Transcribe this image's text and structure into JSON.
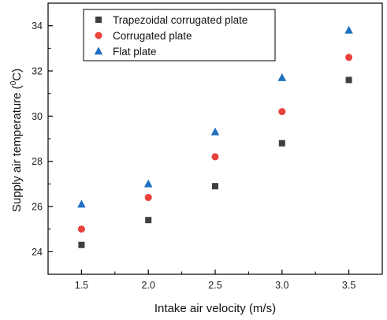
{
  "chart_data": {
    "type": "scatter",
    "xlabel": "Intake air velocity (m/s)",
    "ylabel": "Supply air temperature (",
    "ylabel_super": "0",
    "ylabel_unit": "C)",
    "x_ticks": [
      "1.5",
      "2.0",
      "2.5",
      "3.0",
      "3.5"
    ],
    "y_ticks": [
      "24",
      "26",
      "28",
      "30",
      "32",
      "34"
    ],
    "xlim": [
      1.25,
      3.75
    ],
    "ylim": [
      23.0,
      35.0
    ],
    "grid": false,
    "legend_position": "top-left",
    "x": [
      1.5,
      2.0,
      2.5,
      3.0,
      3.5
    ],
    "series": [
      {
        "name": "Trapezoidal corrugated plate",
        "marker": "square",
        "color": "#3f3f3f",
        "values": [
          24.3,
          25.4,
          26.9,
          28.8,
          31.6
        ]
      },
      {
        "name": "Corrugated plate",
        "marker": "circle",
        "color": "#e8403b",
        "values": [
          25.0,
          26.4,
          28.2,
          30.2,
          32.6
        ]
      },
      {
        "name": "Flat plate",
        "marker": "triangle",
        "color": "#1f6fc2",
        "values": [
          26.1,
          27.0,
          29.3,
          31.7,
          33.8
        ]
      }
    ]
  }
}
